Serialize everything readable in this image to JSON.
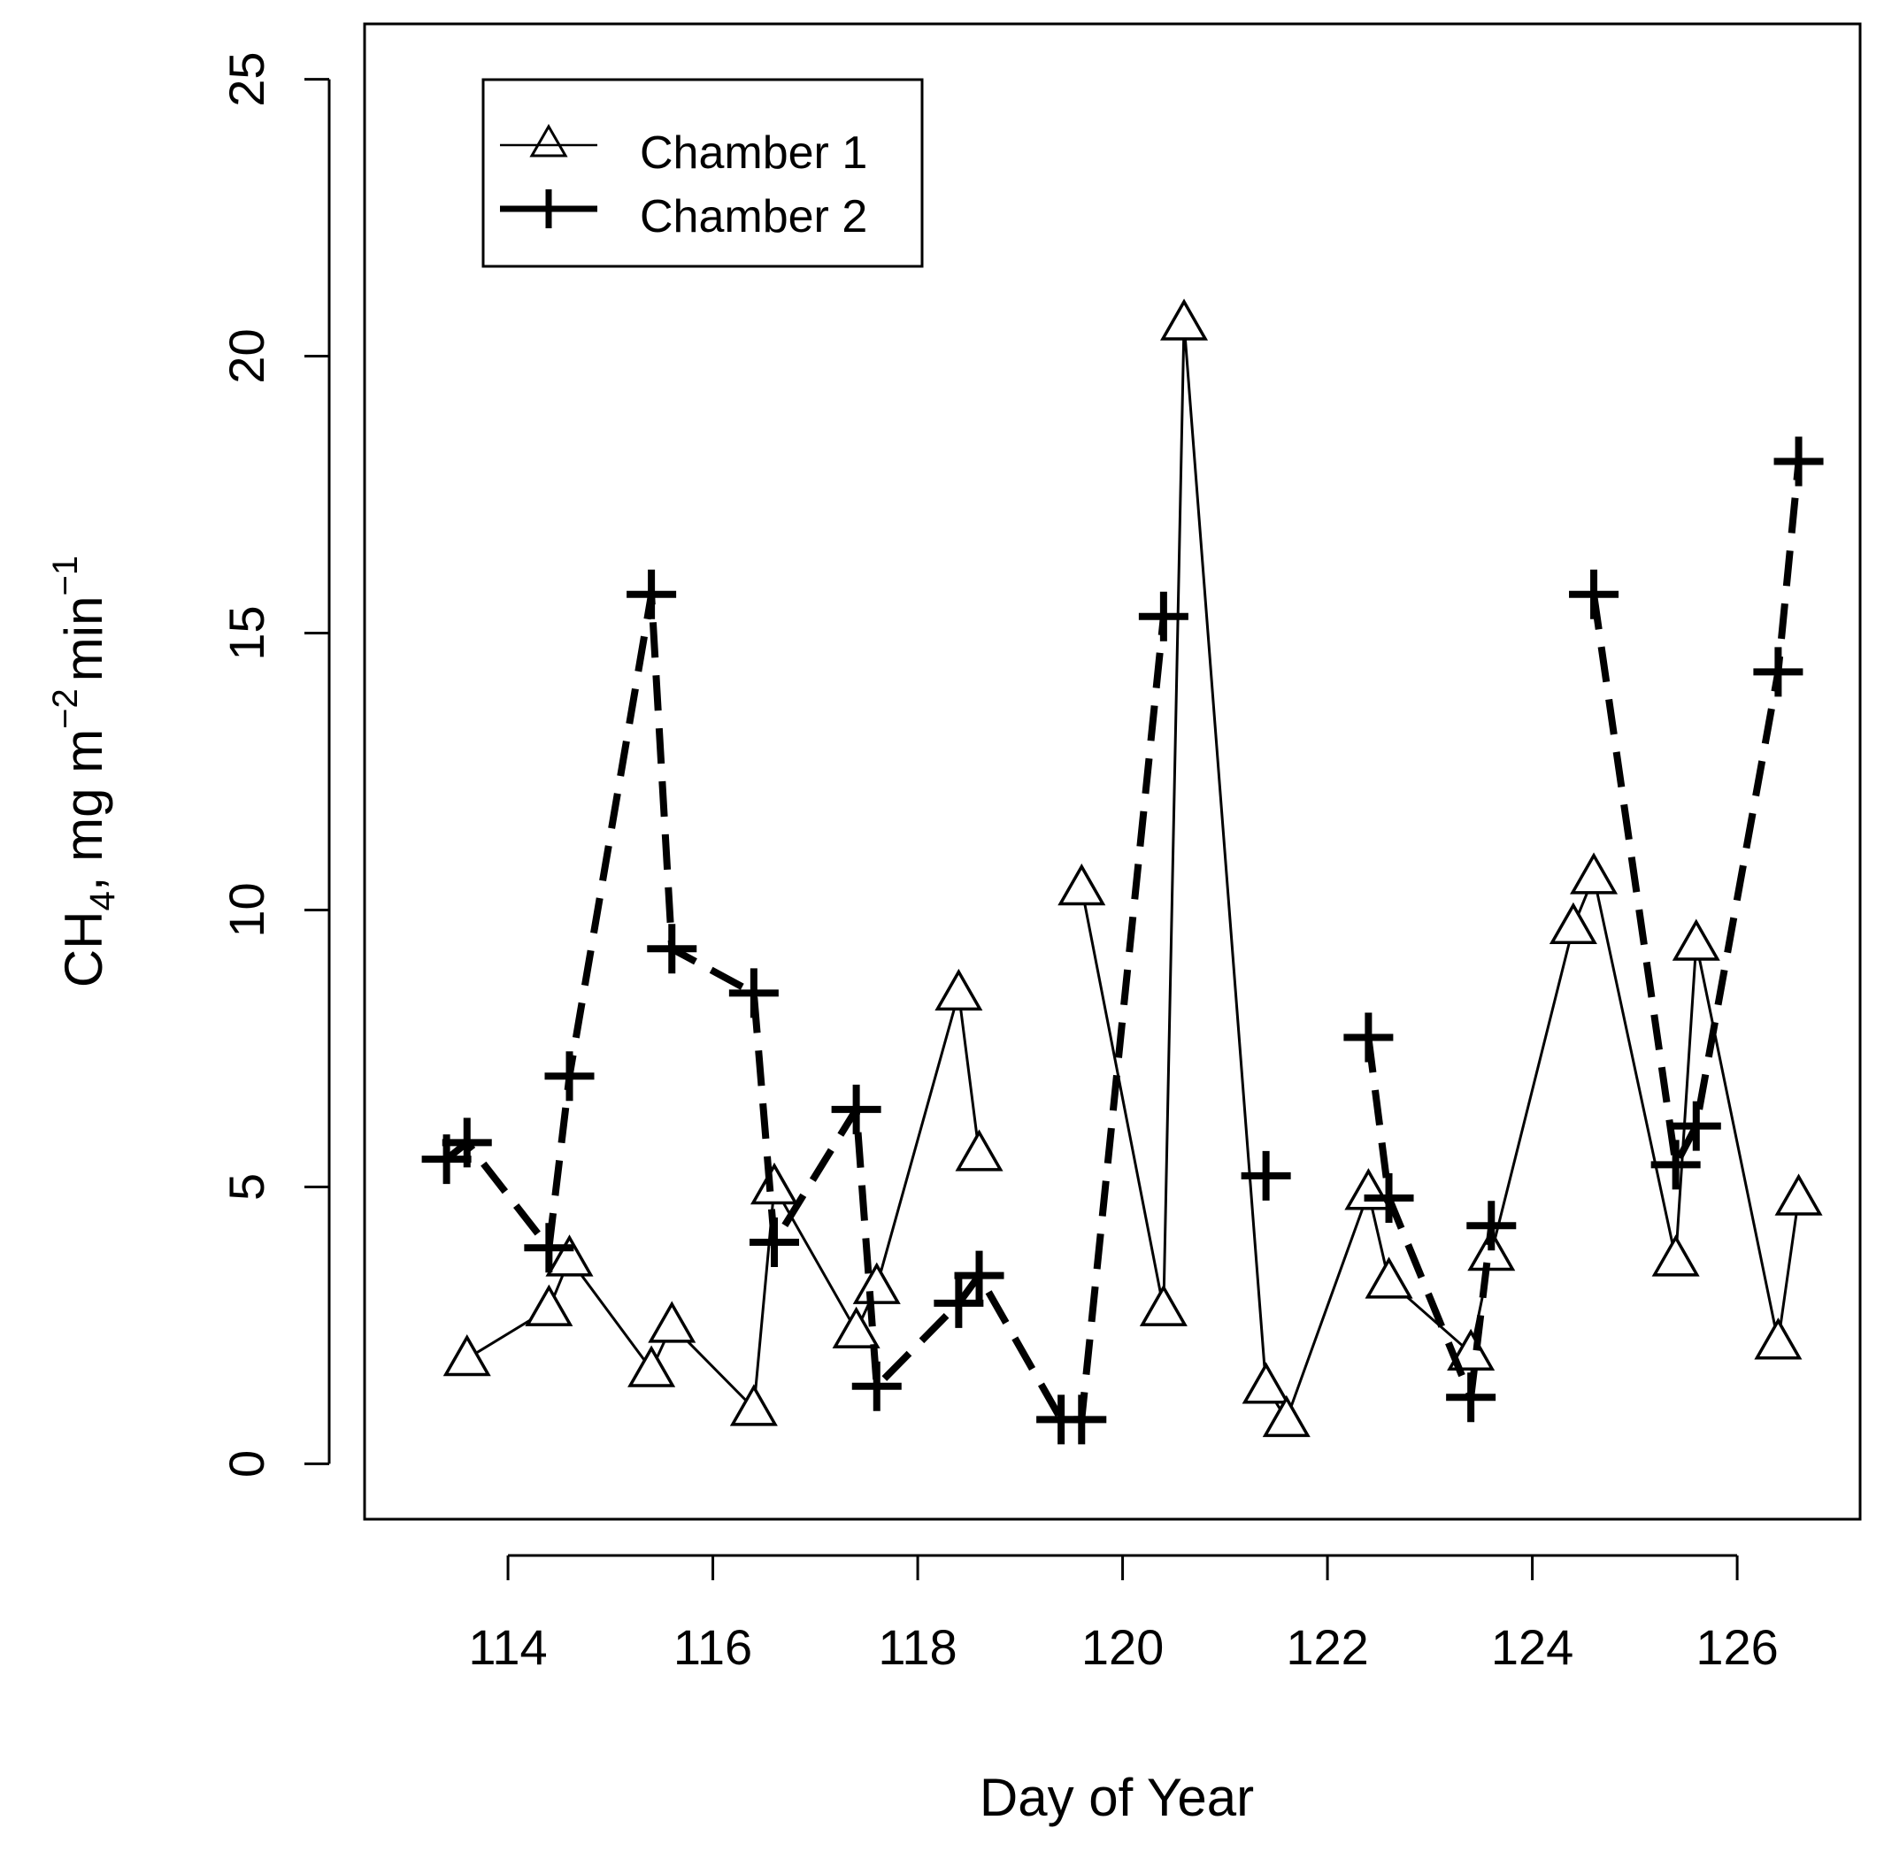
{
  "chart_data": {
    "type": "line",
    "title": "",
    "xlabel": "Day of Year",
    "ylabel": {
      "main": "CH",
      "sub": "4",
      "units_prefix": ", mg m",
      "sup1": "−2",
      "units_mid": "min",
      "sup2": "−1"
    },
    "xlim": [
      112.6,
      127.2
    ],
    "ylim": [
      -1,
      26
    ],
    "xticks": [
      114,
      116,
      118,
      120,
      122,
      124,
      126
    ],
    "yticks": [
      0,
      5,
      10,
      15,
      20,
      25
    ],
    "legend_position": "top-left",
    "series": [
      {
        "name": "Chamber 1",
        "marker": "triangle",
        "line_style": "solid-thin",
        "segments": [
          [
            [
              113.6,
              1.9
            ],
            [
              114.4,
              2.8
            ],
            [
              114.6,
              3.7
            ],
            [
              115.4,
              1.7
            ],
            [
              115.6,
              2.5
            ],
            [
              116.4,
              1.0
            ],
            [
              116.6,
              5.0
            ],
            [
              117.4,
              2.4
            ],
            [
              117.6,
              3.2
            ],
            [
              118.4,
              8.5
            ],
            [
              118.6,
              5.6
            ]
          ],
          [
            [
              119.6,
              10.4
            ],
            [
              120.4,
              2.8
            ],
            [
              120.6,
              20.6
            ],
            [
              121.4,
              1.4
            ],
            [
              121.6,
              0.8
            ],
            [
              122.4,
              4.9
            ],
            [
              122.6,
              3.3
            ],
            [
              123.4,
              2.0
            ],
            [
              123.6,
              3.8
            ],
            [
              124.4,
              9.7
            ],
            [
              124.6,
              10.6
            ],
            [
              125.4,
              3.7
            ],
            [
              125.6,
              9.4
            ],
            [
              126.4,
              2.2
            ],
            [
              126.6,
              4.8
            ]
          ]
        ]
      },
      {
        "name": "Chamber 2",
        "marker": "plus",
        "line_style": "dashed-thick",
        "segments": [
          [
            [
              113.4,
              5.5
            ],
            [
              113.6,
              5.8
            ],
            [
              114.4,
              3.9
            ],
            [
              114.6,
              7.0
            ],
            [
              115.4,
              15.7
            ],
            [
              115.6,
              9.3
            ],
            [
              116.4,
              8.5
            ],
            [
              116.6,
              4.0
            ],
            [
              117.4,
              6.4
            ],
            [
              117.6,
              1.4
            ],
            [
              118.4,
              2.9
            ],
            [
              118.6,
              3.4
            ],
            [
              119.4,
              0.8
            ],
            [
              119.6,
              0.8
            ],
            [
              120.4,
              15.3
            ]
          ],
          [
            [
              121.4,
              5.2
            ]
          ],
          [
            [
              122.4,
              7.7
            ],
            [
              122.6,
              4.8
            ],
            [
              123.4,
              1.2
            ],
            [
              123.6,
              4.3
            ]
          ],
          [
            [
              124.6,
              15.7
            ],
            [
              125.4,
              5.4
            ],
            [
              125.6,
              6.1
            ],
            [
              126.4,
              14.3
            ],
            [
              126.6,
              18.1
            ]
          ]
        ]
      }
    ]
  }
}
